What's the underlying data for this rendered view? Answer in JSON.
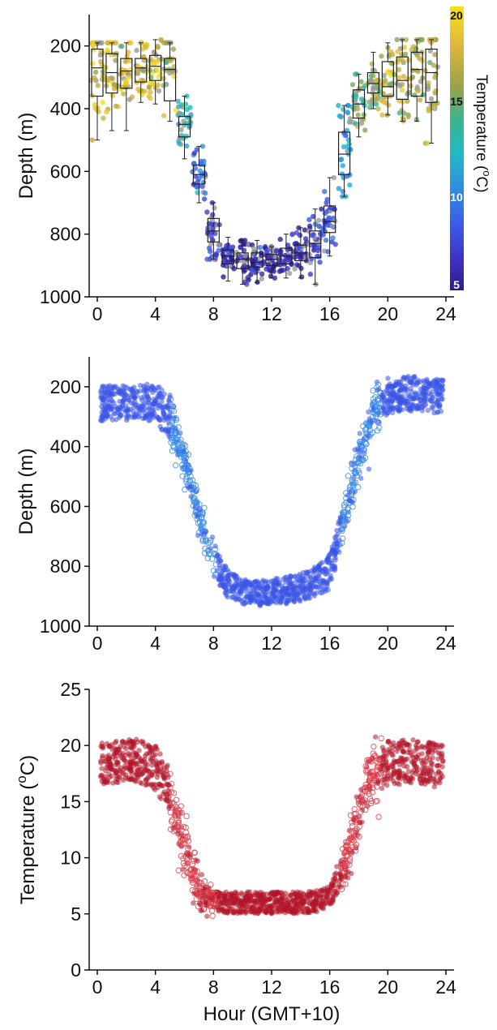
{
  "chart_data": [
    {
      "type": "box",
      "panel": "top",
      "xlabel": "",
      "ylabel": "Depth (m)",
      "xlim": [
        0,
        24
      ],
      "ylim": [
        1000,
        100
      ],
      "y_inverted": true,
      "x_ticks": [
        0,
        4,
        8,
        12,
        16,
        20,
        24
      ],
      "y_ticks": [
        200,
        400,
        600,
        800,
        1000
      ],
      "x_tick_labels": [
        "0",
        "4",
        "8",
        "12",
        "16",
        "20",
        "24"
      ],
      "y_tick_labels": [
        "200",
        "400",
        "600",
        "800",
        "1000"
      ],
      "points_colored_by": "temperature",
      "boxes": [
        {
          "hour": 0,
          "q1": 210,
          "median": 270,
          "q3": 360,
          "whisker_low": 190,
          "whisker_high": 500,
          "temperature": 18
        },
        {
          "hour": 1,
          "q1": 225,
          "median": 285,
          "q3": 350,
          "whisker_low": 190,
          "whisker_high": 470,
          "temperature": 18
        },
        {
          "hour": 2,
          "q1": 240,
          "median": 280,
          "q3": 335,
          "whisker_low": 190,
          "whisker_high": 470,
          "temperature": 18
        },
        {
          "hour": 3,
          "q1": 240,
          "median": 270,
          "q3": 315,
          "whisker_low": 190,
          "whisker_high": 380,
          "temperature": 18
        },
        {
          "hour": 4,
          "q1": 230,
          "median": 265,
          "q3": 310,
          "whisker_low": 180,
          "whisker_high": 385,
          "temperature": 18
        },
        {
          "hour": 5,
          "q1": 240,
          "median": 275,
          "q3": 375,
          "whisker_low": 190,
          "whisker_high": 440,
          "temperature": 17
        },
        {
          "hour": 6,
          "q1": 425,
          "median": 450,
          "q3": 490,
          "whisker_low": 360,
          "whisker_high": 560,
          "temperature": 13
        },
        {
          "hour": 7,
          "q1": 580,
          "median": 610,
          "q3": 640,
          "whisker_low": 520,
          "whisker_high": 700,
          "temperature": 9
        },
        {
          "hour": 8,
          "q1": 750,
          "median": 790,
          "q3": 825,
          "whisker_low": 700,
          "whisker_high": 880,
          "temperature": 7
        },
        {
          "hour": 9,
          "q1": 850,
          "median": 870,
          "q3": 895,
          "whisker_low": 810,
          "whisker_high": 950,
          "temperature": 6
        },
        {
          "hour": 10,
          "q1": 860,
          "median": 880,
          "q3": 910,
          "whisker_low": 820,
          "whisker_high": 960,
          "temperature": 6
        },
        {
          "hour": 11,
          "q1": 860,
          "median": 890,
          "q3": 905,
          "whisker_low": 820,
          "whisker_high": 955,
          "temperature": 6
        },
        {
          "hour": 12,
          "q1": 865,
          "median": 880,
          "q3": 900,
          "whisker_low": 840,
          "whisker_high": 940,
          "temperature": 6
        },
        {
          "hour": 13,
          "q1": 845,
          "median": 870,
          "q3": 895,
          "whisker_low": 800,
          "whisker_high": 940,
          "temperature": 6
        },
        {
          "hour": 14,
          "q1": 835,
          "median": 860,
          "q3": 885,
          "whisker_low": 780,
          "whisker_high": 940,
          "temperature": 6
        },
        {
          "hour": 15,
          "q1": 790,
          "median": 830,
          "q3": 875,
          "whisker_low": 720,
          "whisker_high": 960,
          "temperature": 7
        },
        {
          "hour": 16,
          "q1": 710,
          "median": 760,
          "q3": 795,
          "whisker_low": 620,
          "whisker_high": 870,
          "temperature": 8
        },
        {
          "hour": 17,
          "q1": 475,
          "median": 545,
          "q3": 610,
          "whisker_low": 390,
          "whisker_high": 680,
          "temperature": 12
        },
        {
          "hour": 18,
          "q1": 340,
          "median": 385,
          "q3": 430,
          "whisker_low": 290,
          "whisker_high": 490,
          "temperature": 15
        },
        {
          "hour": 19,
          "q1": 285,
          "median": 320,
          "q3": 350,
          "whisker_low": 220,
          "whisker_high": 400,
          "temperature": 16
        },
        {
          "hour": 20,
          "q1": 250,
          "median": 330,
          "q3": 360,
          "whisker_low": 190,
          "whisker_high": 420,
          "temperature": 17
        },
        {
          "hour": 21,
          "q1": 235,
          "median": 310,
          "q3": 370,
          "whisker_low": 180,
          "whisker_high": 440,
          "temperature": 17
        },
        {
          "hour": 22,
          "q1": 220,
          "median": 275,
          "q3": 360,
          "whisker_low": 180,
          "whisker_high": 440,
          "temperature": 17
        },
        {
          "hour": 23,
          "q1": 210,
          "median": 285,
          "q3": 380,
          "whisker_low": 180,
          "whisker_high": 510,
          "temperature": 17
        }
      ]
    },
    {
      "type": "scatter",
      "panel": "middle",
      "xlabel": "",
      "ylabel": "Depth (m)",
      "xlim": [
        0,
        24
      ],
      "ylim": [
        1000,
        100
      ],
      "y_inverted": true,
      "x_ticks": [
        0,
        4,
        8,
        12,
        16,
        20,
        24
      ],
      "y_ticks": [
        200,
        400,
        600,
        800,
        1000
      ],
      "x_tick_labels": [
        "0",
        "4",
        "8",
        "12",
        "16",
        "20",
        "24"
      ],
      "y_tick_labels": [
        "200",
        "400",
        "600",
        "800",
        "1000"
      ],
      "profile": {
        "hours": [
          0,
          1,
          2,
          3,
          4,
          5,
          6,
          7,
          8,
          9,
          10,
          11,
          12,
          13,
          14,
          15,
          16,
          17,
          18,
          19,
          20,
          21,
          22,
          23,
          24
        ],
        "center": [
          255,
          255,
          255,
          250,
          255,
          300,
          450,
          620,
          780,
          860,
          885,
          890,
          885,
          880,
          870,
          850,
          820,
          640,
          440,
          280,
          230,
          225,
          225,
          230,
          240
        ],
        "spread": [
          70,
          70,
          70,
          70,
          75,
          90,
          60,
          60,
          70,
          55,
          50,
          50,
          50,
          55,
          55,
          60,
          70,
          70,
          70,
          70,
          70,
          70,
          70,
          70,
          70
        ]
      },
      "colors": {
        "filled": "#3a55e6",
        "open": "#3b8ee8"
      }
    },
    {
      "type": "scatter",
      "panel": "bottom",
      "xlabel": "Hour (GMT+10)",
      "ylabel": "Temperature (°C)",
      "ylabel_text": "Temperature (",
      "ylabel_sup": "o",
      "ylabel_unit": "C)",
      "xlim": [
        0,
        24
      ],
      "ylim": [
        0,
        25
      ],
      "x_ticks": [
        0,
        4,
        8,
        12,
        16,
        20,
        24
      ],
      "y_ticks": [
        0,
        5,
        10,
        15,
        20,
        25
      ],
      "x_tick_labels": [
        "0",
        "4",
        "8",
        "12",
        "16",
        "20",
        "24"
      ],
      "y_tick_labels": [
        "0",
        "5",
        "10",
        "15",
        "20",
        "25"
      ],
      "profile": {
        "hours": [
          0,
          1,
          2,
          3,
          4,
          5,
          6,
          7,
          8,
          9,
          10,
          11,
          12,
          13,
          14,
          15,
          16,
          17,
          18,
          19,
          20,
          21,
          22,
          23,
          24
        ],
        "center": [
          18.5,
          18.5,
          18.8,
          18.5,
          18,
          16,
          10.5,
          7,
          6.2,
          6,
          6,
          6,
          6,
          6,
          6,
          6.1,
          6.5,
          9.5,
          14,
          17.5,
          18.5,
          18.5,
          18.5,
          18.3,
          18
        ],
        "spread": [
          2.5,
          2.5,
          2.3,
          2.5,
          2.5,
          2.5,
          2.5,
          1.5,
          1.2,
          1.2,
          1.2,
          1.2,
          1.2,
          1.2,
          1.2,
          1.2,
          1.2,
          2.0,
          2.5,
          2.5,
          2.5,
          2.5,
          2.5,
          2.5,
          2.5
        ]
      },
      "colors": {
        "filled": "#b3162a",
        "open": "#e04550"
      }
    }
  ],
  "colorbar": {
    "title": "Temperature (",
    "title_sup": "o",
    "title_unit": "C)",
    "ticks": [
      "20",
      "15",
      "10",
      "5"
    ],
    "range": [
      5,
      20
    ],
    "colors": [
      "#f2e21a",
      "#e2b83c",
      "#9aa24a",
      "#3ab58f",
      "#23b8c8",
      "#2f8de0",
      "#3b5ee8",
      "#3f35c8",
      "#2c1b8c"
    ]
  }
}
